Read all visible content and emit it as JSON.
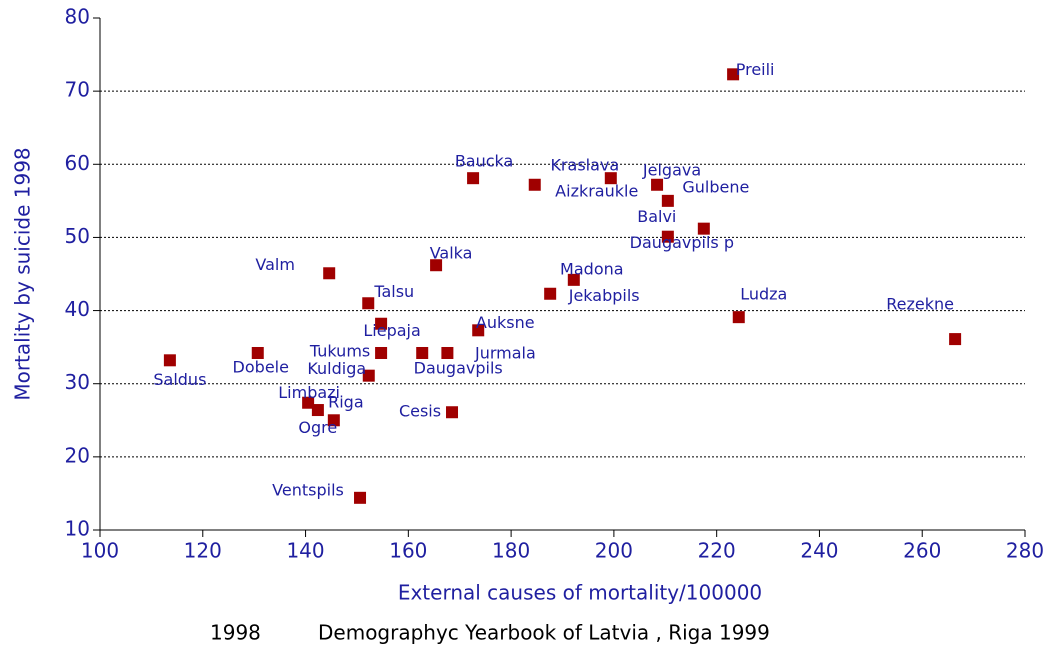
{
  "chart_data": {
    "type": "scatter",
    "xlabel": "External causes of mortality/100000",
    "ylabel": "Mortality by suicide 1998",
    "caption": [
      "1998",
      "Demographyc Yearbook of Latvia , Riga 1999"
    ],
    "labels": [
      "Preili",
      "Baucka",
      "Kraslava",
      "Aizkraukle",
      "Jelgava",
      "Gulbene",
      "Balvi",
      "Daugavpils p",
      "Valka",
      "Valm",
      "Madona",
      "Jekabpils",
      "Talsu",
      "Ludza",
      "Rezekne",
      "Liepaja",
      "Auksne",
      "Saldus",
      "Dobele",
      "Tukums",
      "Daugavpils",
      "Jurmala",
      "Kuldiga",
      "Limbazi",
      "Riga",
      "Ogre",
      "Cesis",
      "Ventspils"
    ],
    "x": [
      223.2,
      172.6,
      199.4,
      184.6,
      208.4,
      210.5,
      217.5,
      210.5,
      165.4,
      144.6,
      192.2,
      187.6,
      152.2,
      224.3,
      266.4,
      154.7,
      173.6,
      113.6,
      130.7,
      154.7,
      162.7,
      167.6,
      152.3,
      140.5,
      142.4,
      145.5,
      168.5,
      150.6
    ],
    "series": [
      {
        "color": "#a00000",
        "values": [
          72.3,
          58.1,
          58.1,
          57.2,
          57.2,
          55,
          51.2,
          50.1,
          46.2,
          45.1,
          44.2,
          42.3,
          41,
          39.1,
          36.1,
          38.2,
          37.3,
          33.2,
          34.2,
          34.2,
          34.2,
          34.2,
          31.1,
          27.4,
          26.4,
          25,
          26.1,
          14.4
        ]
      }
    ],
    "xlim": [
      100,
      280
    ],
    "xticks": [
      100,
      120,
      140,
      160,
      180,
      200,
      220,
      240,
      260,
      280
    ],
    "ylim": [
      10,
      80
    ],
    "yticks": [
      10,
      20,
      30,
      40,
      50,
      60,
      70,
      80
    ],
    "grid": true
  }
}
